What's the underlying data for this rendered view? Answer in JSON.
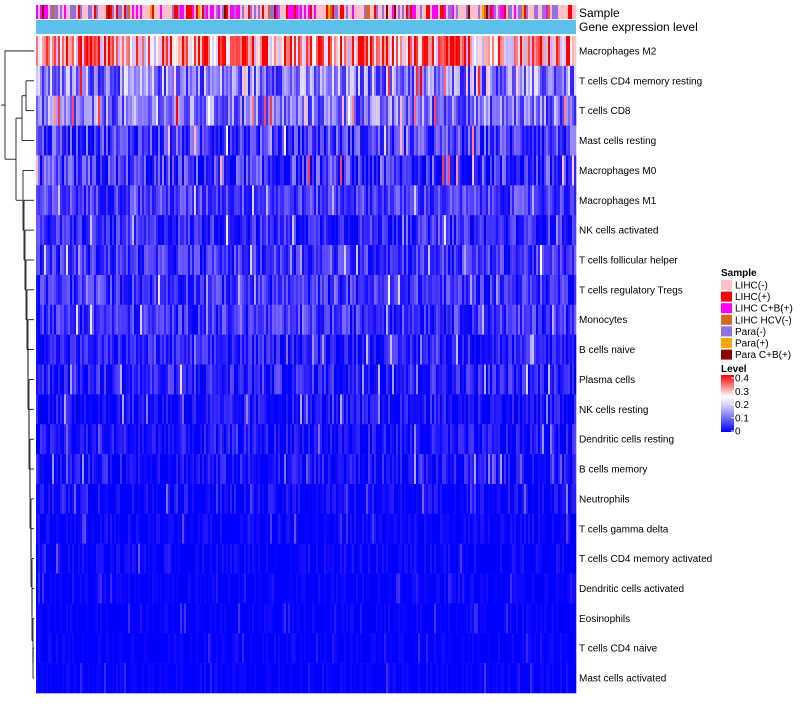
{
  "chart_data": {
    "type": "heatmap",
    "title": "",
    "annotation_tracks": [
      "Sample",
      "Gene expression level"
    ],
    "rows": [
      {
        "label": "Macrophages M2",
        "mean": 0.3,
        "spread": 0.12
      },
      {
        "label": "T cells CD4 memory resting",
        "mean": 0.13,
        "spread": 0.1
      },
      {
        "label": "T cells CD8",
        "mean": 0.12,
        "spread": 0.09
      },
      {
        "label": "Mast cells resting",
        "mean": 0.07,
        "spread": 0.08
      },
      {
        "label": "Macrophages M0",
        "mean": 0.05,
        "spread": 0.1
      },
      {
        "label": "Macrophages M1",
        "mean": 0.07,
        "spread": 0.06
      },
      {
        "label": "NK cells activated",
        "mean": 0.05,
        "spread": 0.06
      },
      {
        "label": "T cells follicular helper",
        "mean": 0.06,
        "spread": 0.06
      },
      {
        "label": "T cells regulatory  Tregs",
        "mean": 0.06,
        "spread": 0.06
      },
      {
        "label": "Monocytes",
        "mean": 0.06,
        "spread": 0.06
      },
      {
        "label": "B cells naive",
        "mean": 0.04,
        "spread": 0.05
      },
      {
        "label": "Plasma cells",
        "mean": 0.04,
        "spread": 0.06
      },
      {
        "label": "NK cells resting",
        "mean": 0.02,
        "spread": 0.05
      },
      {
        "label": "Dendritic cells resting",
        "mean": 0.02,
        "spread": 0.05
      },
      {
        "label": "B cells memory",
        "mean": 0.02,
        "spread": 0.05
      },
      {
        "label": "Neutrophils",
        "mean": 0.01,
        "spread": 0.04
      },
      {
        "label": "T cells gamma delta",
        "mean": 0.005,
        "spread": 0.03
      },
      {
        "label": "T cells CD4 memory activated",
        "mean": 0.005,
        "spread": 0.03
      },
      {
        "label": "Dendritic cells activated",
        "mean": 0.003,
        "spread": 0.02
      },
      {
        "label": "Eosinophils",
        "mean": 0.002,
        "spread": 0.02
      },
      {
        "label": "T cells CD4 naive",
        "mean": 0.002,
        "spread": 0.02
      },
      {
        "label": "Mast cells activated",
        "mean": 0.002,
        "spread": 0.02
      }
    ],
    "color_scale": {
      "title": "Level",
      "range": [
        0,
        0.4
      ],
      "ticks": [
        "0.4",
        "0.3",
        "0.2",
        "0.1",
        "0"
      ],
      "low_color": "#0000ff",
      "mid_color": "#ffffff",
      "high_color": "#ff0000"
    },
    "sample_legend": {
      "title": "Sample",
      "items": [
        {
          "label": "LIHC(-)",
          "color": "#ffc0cb"
        },
        {
          "label": "LIHC(+)",
          "color": "#ff0000"
        },
        {
          "label": "LIHC C+B(+)",
          "color": "#ff00ff"
        },
        {
          "label": "LIHC HCV(-)",
          "color": "#d2691e"
        },
        {
          "label": "Para(-)",
          "color": "#9370db"
        },
        {
          "label": "Para(+)",
          "color": "#ffa500"
        },
        {
          "label": "Para C+B(+)",
          "color": "#8b0000"
        }
      ]
    },
    "expression_bar_color": "#5bc0eb",
    "n_samples": 270
  }
}
